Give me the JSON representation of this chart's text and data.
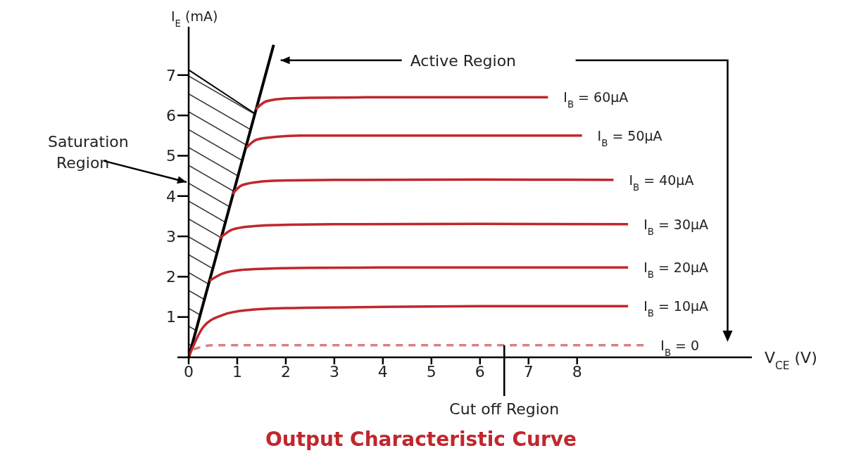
{
  "chart_data": {
    "type": "line",
    "title": "Output Characteristic Curve",
    "xlabel": "V$_{CE}$ (V)",
    "ylabel": "I$_{E}$ (mA)",
    "xlim": [
      0,
      11.6
    ],
    "ylim": [
      0,
      8.2
    ],
    "xticks": [
      0,
      1,
      2,
      3,
      4,
      5,
      6,
      7,
      8
    ],
    "yticks": [
      {
        "value": 0,
        "label": null
      },
      1,
      2,
      3,
      4,
      5,
      6,
      7
    ],
    "marker": "none",
    "series": [
      {
        "type": "line",
        "color": "#000000",
        "x": [
          0,
          1.75
        ],
        "values": [
          0,
          7.75
        ]
      },
      {
        "name": "I$_{B}$ = 60μA",
        "color": "#c0272d",
        "x": [
          1.38,
          1.6,
          2,
          2.5,
          4,
          7.4
        ],
        "values": [
          6.15,
          6.35,
          6.42,
          6.44,
          6.45,
          6.45
        ]
      },
      {
        "name": "I$_{B}$ = 50μA",
        "color": "#c0272d",
        "x": [
          1.19,
          1.4,
          1.8,
          2.3,
          4,
          8.1
        ],
        "values": [
          5.2,
          5.4,
          5.47,
          5.5,
          5.5,
          5.5
        ]
      },
      {
        "name": "I$_{B}$ = 40μA",
        "color": "#c0272d",
        "x": [
          0.9,
          1.1,
          1.5,
          2,
          3,
          6,
          8.75
        ],
        "values": [
          4.05,
          4.27,
          4.36,
          4.39,
          4.4,
          4.41,
          4.4
        ]
      },
      {
        "name": "I$_{B}$ = 30μA",
        "color": "#c0272d",
        "x": [
          0.64,
          0.9,
          1.3,
          1.8,
          3,
          6,
          9.05
        ],
        "values": [
          2.95,
          3.17,
          3.25,
          3.28,
          3.3,
          3.31,
          3.3
        ]
      },
      {
        "name": "I$_{B}$ = 20μA",
        "color": "#c0272d",
        "x": [
          0.43,
          0.7,
          1.1,
          1.6,
          2.5,
          5,
          9.05
        ],
        "values": [
          1.9,
          2.08,
          2.17,
          2.2,
          2.22,
          2.23,
          2.23
        ]
      },
      {
        "name": "I$_{B}$ = 10μA",
        "color": "#c0272d",
        "x": [
          0,
          0.3,
          0.7,
          1.2,
          2,
          4,
          6,
          9.05
        ],
        "values": [
          0,
          0.75,
          1.05,
          1.17,
          1.22,
          1.25,
          1.27,
          1.27
        ]
      },
      {
        "name": "I$_{B}$ = 0",
        "color": "#d98080",
        "line_style": "dashed",
        "x": [
          0.1,
          0.5,
          9.4
        ],
        "values": [
          0.2,
          0.3,
          0.3
        ]
      }
    ],
    "annotations": [
      "Active Region",
      "Saturation Region",
      {
        "text": "Cut off Region",
        "x": 6.5,
        "y": 0.3
      }
    ]
  }
}
